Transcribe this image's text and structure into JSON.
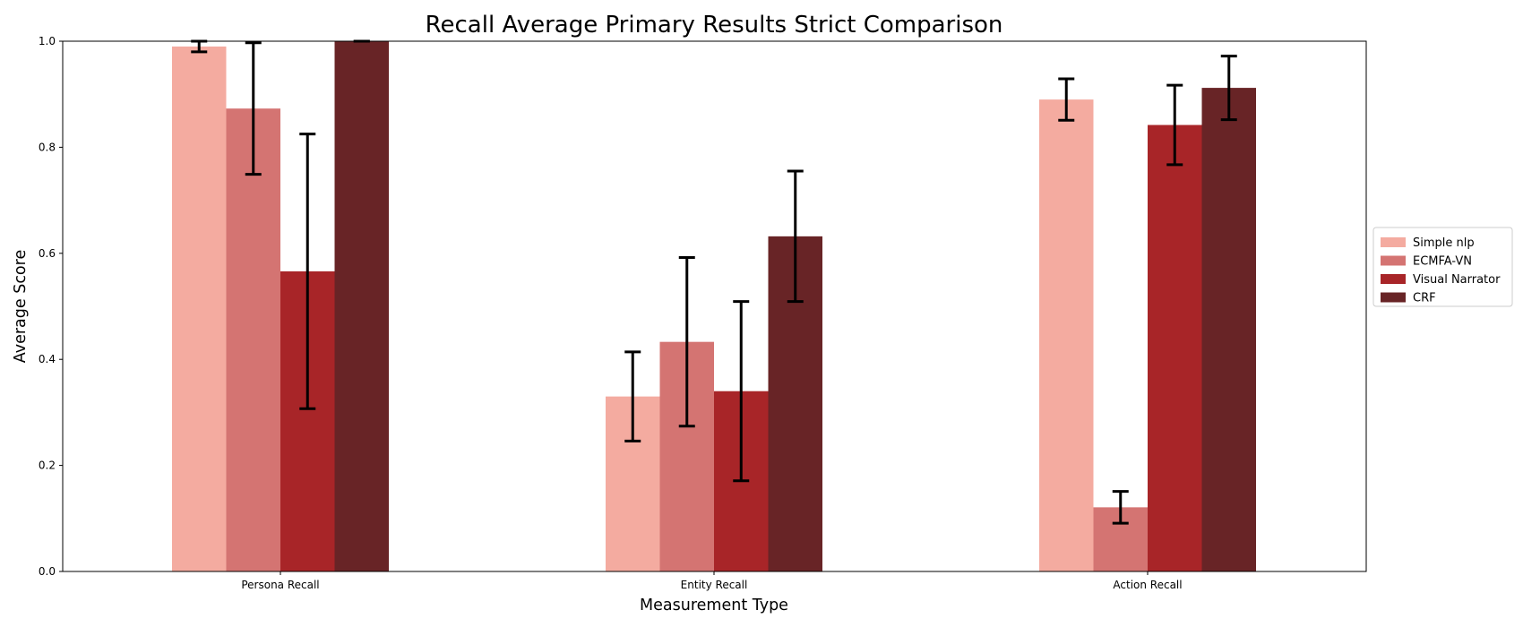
{
  "chart_data": {
    "type": "bar",
    "title": "Recall Average Primary Results Strict Comparison",
    "xlabel": "Measurement Type",
    "ylabel": "Average Score",
    "ylim": [
      0,
      1.0
    ],
    "yticks": [
      0.0,
      0.2,
      0.4,
      0.6,
      0.8,
      1.0
    ],
    "ytick_labels": [
      "0.0",
      "0.2",
      "0.4",
      "0.6",
      "0.8",
      "1.0"
    ],
    "categories": [
      "Persona Recall",
      "Entity Recall",
      "Action Recall"
    ],
    "series": [
      {
        "name": "Simple nlp",
        "color": "#f4aba0",
        "values": [
          0.99,
          0.33,
          0.89
        ],
        "errors": [
          0.01,
          0.084,
          0.039
        ]
      },
      {
        "name": "ECMFA-VN",
        "color": "#d47472",
        "values": [
          0.873,
          0.433,
          0.121
        ],
        "errors": [
          0.124,
          0.159,
          0.03
        ]
      },
      {
        "name": "Visual Narrator",
        "color": "#a82528",
        "values": [
          0.566,
          0.34,
          0.842
        ],
        "errors": [
          0.259,
          0.169,
          0.075
        ]
      },
      {
        "name": "CRF",
        "color": "#682426",
        "values": [
          1.0,
          0.632,
          0.912
        ],
        "errors": [
          0.0,
          0.123,
          0.06
        ]
      }
    ],
    "grid": false,
    "legend_position": "center-right"
  }
}
